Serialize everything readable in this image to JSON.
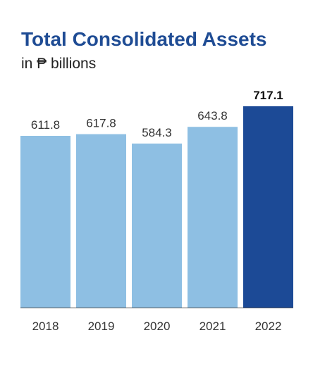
{
  "chart_data": {
    "type": "bar",
    "title": "Total Consolidated Assets",
    "subtitle": "in ₱ billions",
    "categories": [
      "2018",
      "2019",
      "2020",
      "2021",
      "2022"
    ],
    "values": [
      611.8,
      617.8,
      584.3,
      643.8,
      717.1
    ],
    "value_labels": [
      "611.8",
      "617.8",
      "584.3",
      "643.8",
      "717.1"
    ],
    "highlight_category": "2022",
    "ylim": [
      0,
      717.1
    ],
    "grid": false,
    "legend": "none"
  },
  "colors": {
    "title": "#1F4C94",
    "bar": "#8EBFE3",
    "bar_highlight": "#1C4A96",
    "baseline": "#555555"
  }
}
